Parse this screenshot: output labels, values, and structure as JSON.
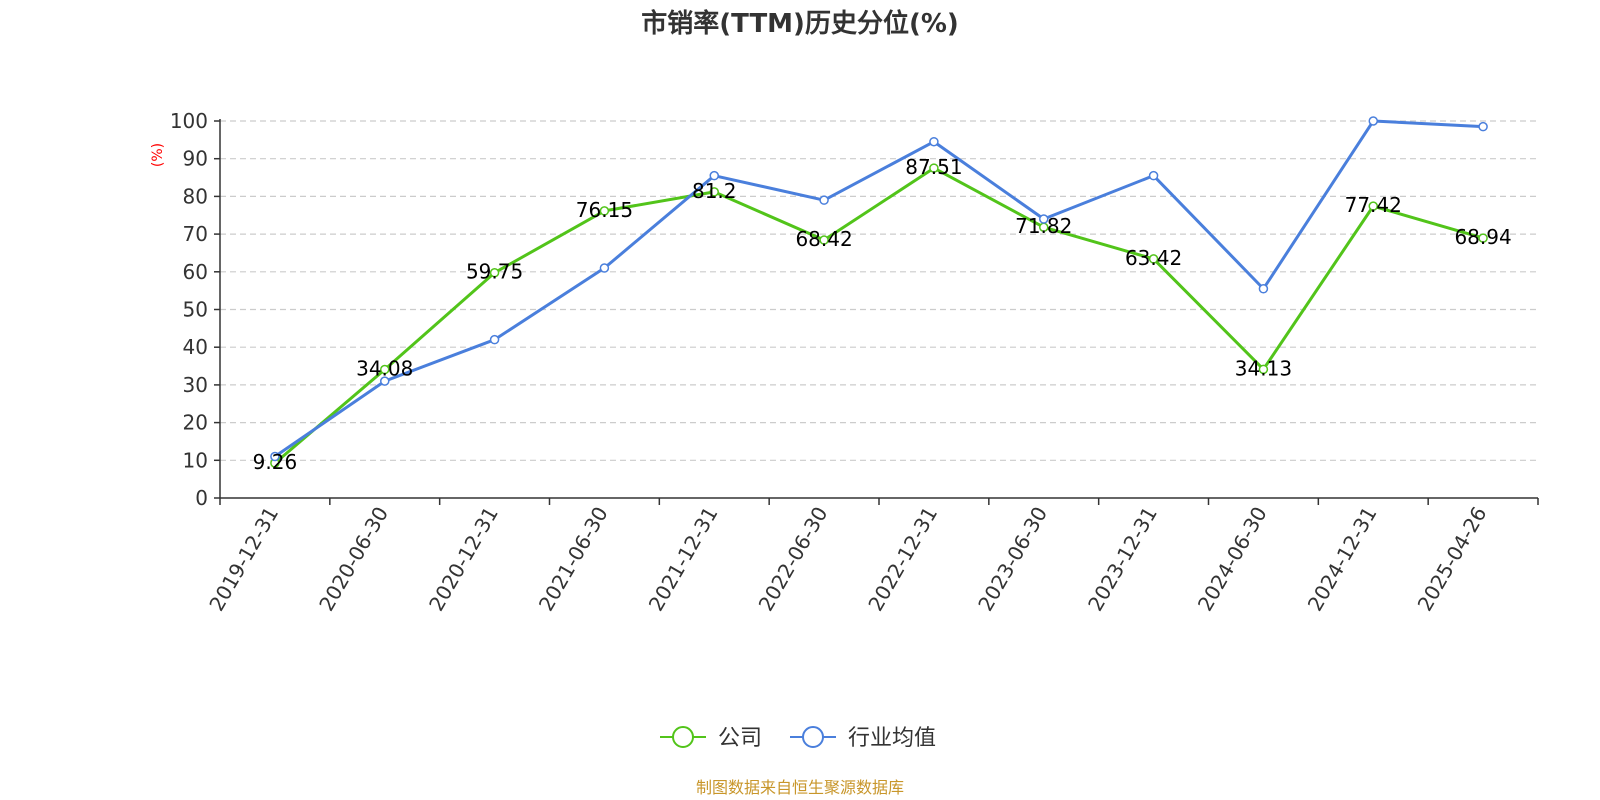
{
  "chart_data": {
    "type": "line",
    "title": "市销率(TTM)历史分位(%)",
    "ylabel": "(%)",
    "xlabel": "",
    "ylim": [
      0,
      100
    ],
    "yticks": [
      0,
      10,
      20,
      30,
      40,
      50,
      60,
      70,
      80,
      90,
      100
    ],
    "grid": true,
    "legend_position": "bottom",
    "categories": [
      "2019-12-31",
      "2020-06-30",
      "2020-12-31",
      "2021-06-30",
      "2021-12-31",
      "2022-06-30",
      "2022-12-31",
      "2023-06-30",
      "2023-12-31",
      "2024-06-30",
      "2024-12-31",
      "2025-04-26"
    ],
    "series": [
      {
        "name": "公司",
        "color": "#52c41a",
        "values": [
          9.26,
          34.08,
          59.75,
          76.15,
          81.2,
          68.42,
          87.51,
          71.82,
          63.42,
          34.13,
          77.42,
          68.94
        ],
        "labels": [
          "9.26",
          "34.08",
          "59.75",
          "76.15",
          "81.2",
          "68.42",
          "87.51",
          "71.82",
          "63.42",
          "34.13",
          "77.42",
          "68.94"
        ]
      },
      {
        "name": "行业均值",
        "color": "#4a7fdc",
        "values": [
          11,
          31,
          42,
          61,
          85.5,
          79,
          94.5,
          74,
          85.5,
          55.5,
          100,
          98.5
        ]
      }
    ]
  },
  "source_text": "制图数据来自恒生聚源数据库"
}
